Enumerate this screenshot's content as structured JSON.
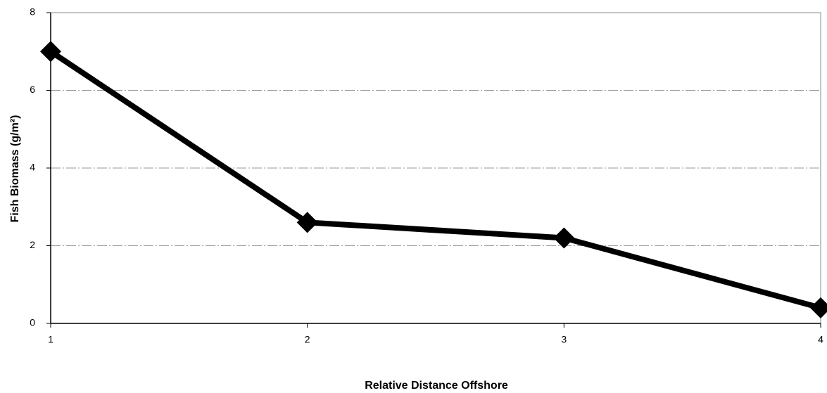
{
  "chart_data": {
    "type": "line",
    "x": [
      1,
      2,
      3,
      4
    ],
    "values": [
      7.0,
      2.6,
      2.2,
      0.4
    ],
    "color": "#000000",
    "xlabel": "Relative Distance Offshore",
    "ylabel": "Fish Biomass (g/m²)",
    "xlim": [
      1,
      4
    ],
    "xticks": [
      1,
      2,
      3,
      4
    ],
    "ylim": [
      0,
      8
    ],
    "yticks": [
      0,
      2,
      4,
      6,
      8
    ],
    "grid": true
  }
}
